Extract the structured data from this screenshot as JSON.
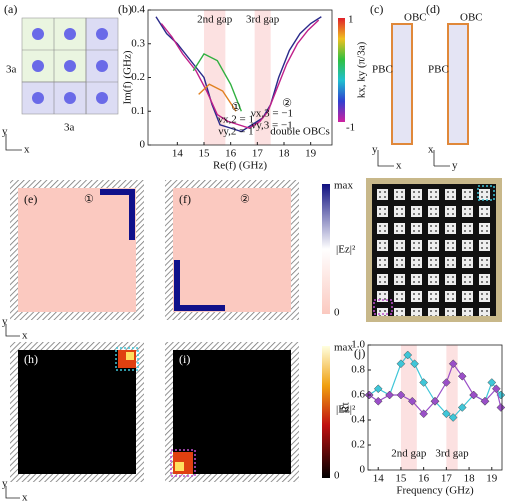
{
  "panels": {
    "a": {
      "label": "(a)",
      "side_left": "3a",
      "side_bottom": "3a",
      "axis_y": "y",
      "axis_x": "x"
    },
    "b": {
      "label": "(b)",
      "colorbar_top": "1",
      "colorbar_bottom": "-1",
      "colorbar_title": "kx, ky (π/3a)"
    },
    "c": {
      "label": "(c)",
      "top": "OBC",
      "side": "PBC",
      "axis_y": "y",
      "axis_x": "x"
    },
    "d": {
      "label": "(d)",
      "top": "OBC",
      "side": "PBC",
      "axis_y": "y",
      "axis_x": "x"
    },
    "e": {
      "label": "(e)",
      "marker": "①"
    },
    "f": {
      "label": "(f)",
      "marker": "②"
    },
    "field_bar_1": {
      "top": "max",
      "bottom": "0",
      "title": "|Ez|²"
    },
    "h": {
      "label": "(h)"
    },
    "i": {
      "label": "(i)"
    },
    "field_bar_2": {
      "top": "max",
      "bottom": "0",
      "title": "|Ez|²"
    },
    "j": {
      "label": "(j)"
    },
    "row_axes": {
      "e_y": "y",
      "e_x": "x",
      "h_y": "y",
      "h_x": "x"
    }
  },
  "chart_data": [
    {
      "type": "line",
      "xlabel": "Re(f) (GHz)",
      "ylabel": "Im(f) (GHz)",
      "xlim": [
        12.9,
        19.8
      ],
      "ylim": [
        0,
        0.4
      ],
      "xticks": [
        14,
        15,
        16,
        17,
        18,
        19
      ],
      "yticks": [
        0,
        0.1,
        0.2,
        0.3,
        0.4
      ],
      "bands": [
        {
          "label": "2nd gap",
          "range": [
            15.0,
            15.8
          ]
        },
        {
          "label": "3rd gap",
          "range": [
            16.9,
            17.5
          ]
        }
      ],
      "annotations": [
        "①",
        "②",
        "double OBCs",
        "νx,2 = 1",
        "νy,2 = 1",
        "νx,3 = −1",
        "νy,3 = −1"
      ],
      "series": [
        {
          "color": "#2a2a8a",
          "x": [
            13.2,
            13.6,
            14.0,
            14.5,
            15.0,
            15.3,
            15.6,
            16.0,
            16.4,
            16.8,
            17.2,
            17.5,
            17.8,
            18.2,
            18.6,
            19.0,
            19.4
          ],
          "values": [
            0.38,
            0.33,
            0.3,
            0.25,
            0.2,
            0.12,
            0.06,
            0.05,
            0.04,
            0.06,
            0.08,
            0.12,
            0.2,
            0.28,
            0.33,
            0.36,
            0.38
          ]
        },
        {
          "color": "#c0208a",
          "x": [
            13.4,
            13.8,
            14.2,
            14.7,
            15.1,
            15.5,
            15.9,
            16.3,
            16.7,
            17.1,
            17.4,
            17.7,
            18.1,
            18.5,
            18.9,
            19.3
          ],
          "values": [
            0.36,
            0.32,
            0.27,
            0.22,
            0.16,
            0.09,
            0.07,
            0.06,
            0.05,
            0.07,
            0.1,
            0.16,
            0.24,
            0.3,
            0.34,
            0.37
          ]
        },
        {
          "color": "#30b040",
          "x": [
            14.6,
            15.0,
            15.5,
            16.0,
            16.4
          ],
          "values": [
            0.22,
            0.27,
            0.25,
            0.18,
            0.1
          ]
        },
        {
          "color": "#e08020",
          "x": [
            14.8,
            15.2,
            15.7,
            16.2
          ],
          "values": [
            0.15,
            0.18,
            0.16,
            0.1
          ]
        }
      ]
    },
    {
      "type": "line",
      "xlabel": "Frequency (GHz)",
      "ylabel": "Rt",
      "xlim": [
        13.55,
        19.45
      ],
      "ylim": [
        0,
        1
      ],
      "xticks": [
        14,
        15,
        16,
        17,
        18,
        19
      ],
      "yticks": [
        0,
        0.2,
        0.4,
        0.6,
        0.8,
        {
          "value": 1,
          "label": "1.0"
        }
      ],
      "bands": [
        {
          "label": "2nd gap",
          "range": [
            15.0,
            15.7
          ]
        },
        {
          "label": "3rd gap",
          "range": [
            17.0,
            17.5
          ]
        }
      ],
      "series": [
        {
          "color": "#3fc6d8",
          "marker": "diamond",
          "x": [
            13.6,
            14.0,
            14.5,
            15.0,
            15.3,
            15.6,
            16.0,
            16.5,
            17.0,
            17.3,
            17.7,
            18.2,
            18.7,
            19.0,
            19.4
          ],
          "values": [
            0.6,
            0.65,
            0.6,
            0.85,
            0.92,
            0.85,
            0.7,
            0.55,
            0.45,
            0.42,
            0.5,
            0.6,
            0.55,
            0.7,
            0.6
          ]
        },
        {
          "color": "#9a4fc8",
          "marker": "diamond",
          "x": [
            13.6,
            14.0,
            14.5,
            15.0,
            15.5,
            16.0,
            16.5,
            17.0,
            17.3,
            17.7,
            18.2,
            18.7,
            19.2,
            19.4
          ],
          "values": [
            0.6,
            0.55,
            0.6,
            0.6,
            0.55,
            0.45,
            0.55,
            0.7,
            0.85,
            0.75,
            0.6,
            0.55,
            0.65,
            0.5
          ]
        }
      ]
    }
  ]
}
